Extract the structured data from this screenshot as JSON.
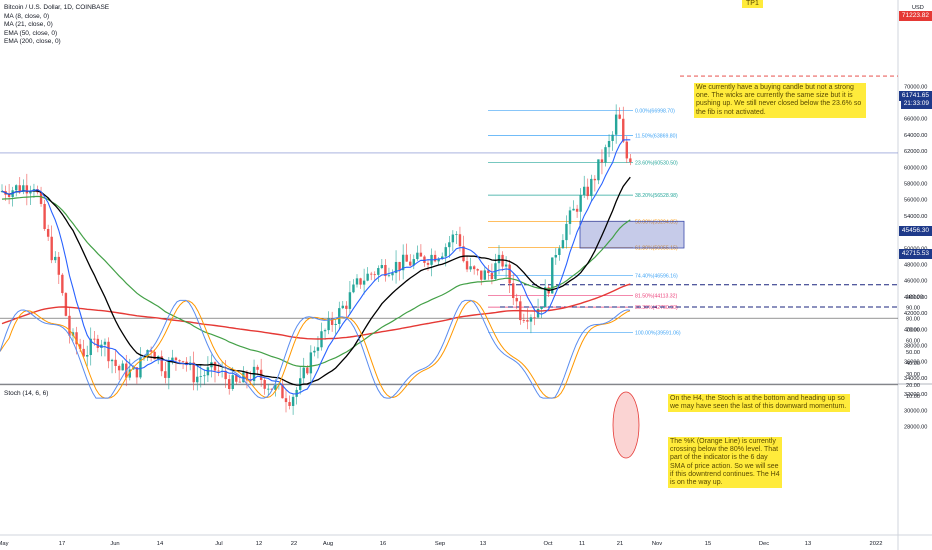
{
  "legend": {
    "symbol": "Bitcoin / U.S. Dollar, 1D, COINBASE",
    "items": [
      "MA (8, close, 0)",
      "MA (21, close, 0)",
      "EMA (50, close, 0)",
      "EMA (200, close, 0)"
    ]
  },
  "axis_label_usd": "USD",
  "target_label": "TP1",
  "stoch_label": "Stoch (14, 6, 6)",
  "notes": {
    "main": "We currently have a buying candle but not a strong one. The wicks are currently the same size but it is pushing up. We still never closed below the 23.6% so the fib is not activated.",
    "h4": "On the H4, the Stoch is at the bottom and heading up so we may have seen the last of this downward momentum.",
    "k": "The %K (Orange Line) is currently crossing below the 80% level. That part of the indicator is the 6 day SMA of price action. So we will see if this downtrend continues. The H4 is on the way up."
  },
  "price_tags": {
    "target": "71223.82",
    "current": "61741.65",
    "countdown": "21:33:09",
    "level_high": "45456.30",
    "level_low": "42715.53"
  },
  "x_ticks": [
    "May",
    "17",
    "Jun",
    "14",
    "Jul",
    "12",
    "22",
    "Aug",
    "16",
    "Sep",
    "13",
    "Oct",
    "11",
    "21",
    "Nov",
    "15",
    "Dec",
    "13",
    "2022"
  ],
  "stoch_ticks": [
    "100.00",
    "90.00",
    "80.00",
    "70.00",
    "60.00",
    "50.00",
    "40.00",
    "30.00",
    "20.00",
    "10.00"
  ],
  "chart_data": {
    "type": "candlestick",
    "y_ticks": [
      28000,
      30000,
      32000,
      34000,
      36000,
      38000,
      40000,
      42000,
      44000,
      46000,
      48000,
      50000,
      52000,
      54000,
      56000,
      58000,
      60000,
      62000,
      64000,
      66000,
      68000,
      70000
    ],
    "ylim": [
      26500,
      72500
    ],
    "x_range": [
      "May",
      "2022"
    ],
    "colors": {
      "up": "#26a69a",
      "down": "#ef5350",
      "ma8": "#2962ff",
      "ma21": "#000000",
      "ema50": "#43a047",
      "ema200": "#e53935",
      "stoch_k": "#5b8def",
      "stoch_d": "#ff9800"
    },
    "fib_levels": [
      {
        "label": "0.00%(66998.70)",
        "value": 66998.7
      },
      {
        "label": "11.50%(63869.80)",
        "value": 63869.8
      },
      {
        "label": "23.60%(60530.50)",
        "value": 60530.5
      },
      {
        "label": "38.20%(56528.98)",
        "value": 56528.98
      },
      {
        "label": "50.00%(53294.85)",
        "value": 53294.85
      },
      {
        "label": "61.80%(50055.15)",
        "value": 50055.15
      },
      {
        "label": "74.40%(46596.16)",
        "value": 46596.16
      },
      {
        "label": "81.50%(44113.32)",
        "value": 44113.32
      },
      {
        "label": "86.30%(42700.90)",
        "value": 42700.9
      },
      {
        "label": "100.00%(39591.06)",
        "value": 39591.06
      }
    ],
    "target": 71223.82,
    "current_price": 61741.65,
    "level_high": 45456.3,
    "level_low": 42715.53,
    "zone": [
      50000,
      53300
    ]
  }
}
